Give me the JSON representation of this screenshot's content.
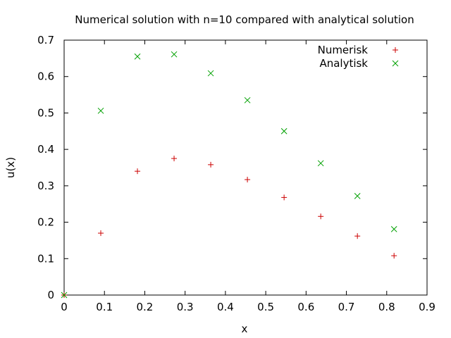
{
  "chart_data": {
    "type": "scatter",
    "title": "Numerical solution with n=10 compared with analytical solution",
    "xlabel": "x",
    "ylabel": "u(x)",
    "xlim": [
      0,
      0.9
    ],
    "ylim": [
      0,
      0.7
    ],
    "xticks": [
      "0",
      "0.1",
      "0.2",
      "0.3",
      "0.4",
      "0.5",
      "0.6",
      "0.7",
      "0.8",
      "0.9"
    ],
    "yticks": [
      "0",
      "0.1",
      "0.2",
      "0.3",
      "0.4",
      "0.5",
      "0.6",
      "0.7"
    ],
    "grid": false,
    "legend_position": "top-right",
    "series": [
      {
        "name": "Numerisk",
        "marker": "plus",
        "color": "#cc0000",
        "x": [
          0,
          0.0909,
          0.1818,
          0.2727,
          0.3636,
          0.4545,
          0.5455,
          0.6364,
          0.7273,
          0.8182
        ],
        "y": [
          0,
          0.17,
          0.34,
          0.375,
          0.358,
          0.317,
          0.268,
          0.216,
          0.162,
          0.108
        ]
      },
      {
        "name": "Analytisk",
        "marker": "cross",
        "color": "#00a000",
        "x": [
          0,
          0.0909,
          0.1818,
          0.2727,
          0.3636,
          0.4545,
          0.5455,
          0.6364,
          0.7273,
          0.8182
        ],
        "y": [
          0,
          0.506,
          0.655,
          0.661,
          0.609,
          0.535,
          0.45,
          0.362,
          0.272,
          0.181
        ]
      }
    ]
  }
}
